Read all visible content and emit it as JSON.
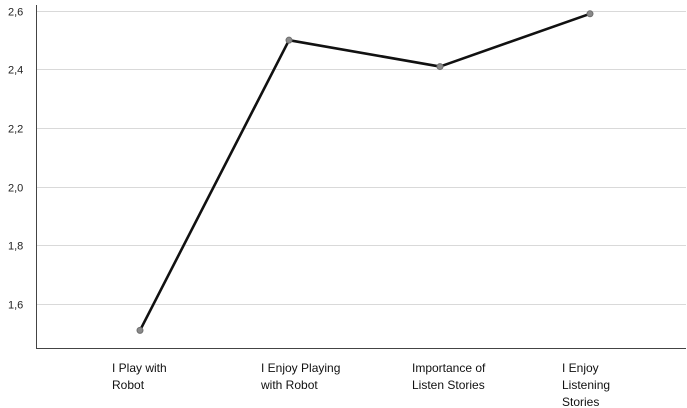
{
  "chart_data": {
    "type": "line",
    "title": "",
    "xlabel": "",
    "ylabel": "",
    "categories": [
      "I Play with Robot",
      "I Enjoy Playing with Robot",
      "Importance of Listen Stories",
      "I Enjoy Listening Stories"
    ],
    "category_label_lines": [
      [
        "I Play with",
        "Robot"
      ],
      [
        "I Enjoy Playing",
        "with Robot"
      ],
      [
        "Importance of",
        "Listen Stories"
      ],
      [
        "I Enjoy",
        "Listening",
        "Stories"
      ]
    ],
    "series": [
      {
        "values": [
          1.51,
          2.5,
          2.41,
          2.59
        ]
      }
    ],
    "ylim": [
      1.45,
      2.62
    ],
    "yticks": [
      1.6,
      1.8,
      2.0,
      2.2,
      2.4,
      2.6
    ],
    "ytick_labels": [
      "1,6",
      "1,8",
      "2,0",
      "2,2",
      "2,4",
      "2,6"
    ],
    "grid": true,
    "colors": {
      "line": "#111111",
      "point": "#8a8a8a",
      "grid": "#d9d9d9",
      "axis": "#444444"
    }
  }
}
